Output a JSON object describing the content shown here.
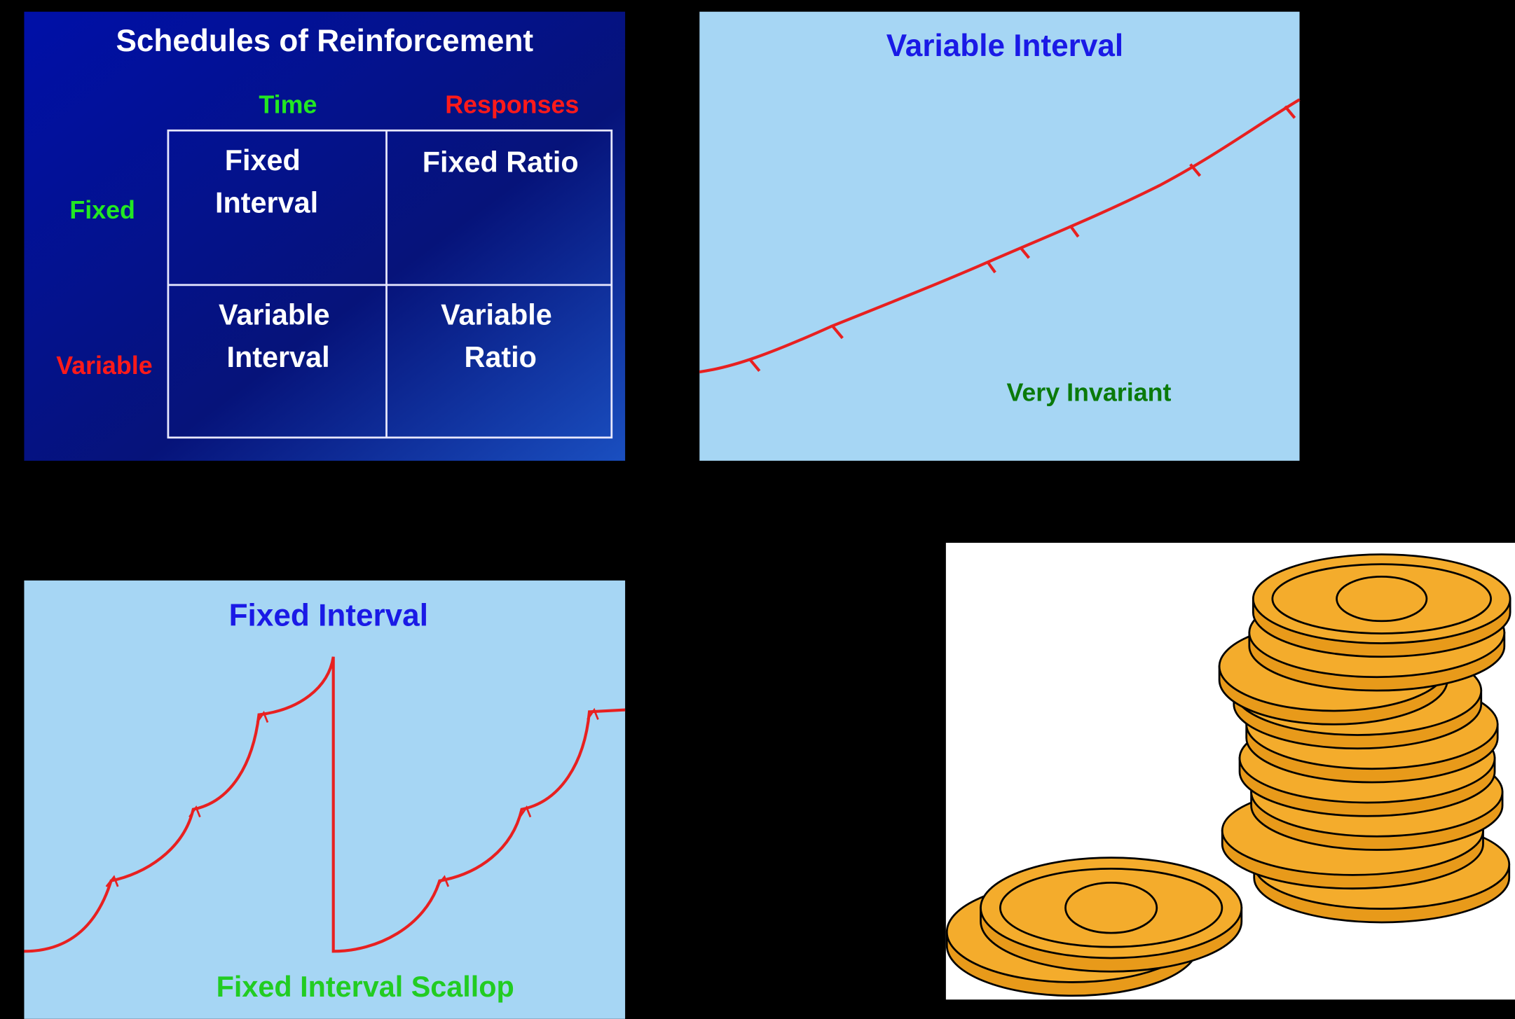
{
  "slide1": {
    "title": "Schedules of Reinforcement",
    "columns": [
      "Time",
      "Responses"
    ],
    "rows": [
      "Fixed",
      "Variable"
    ],
    "cells": [
      [
        [
          "Fixed",
          "Interval"
        ],
        [
          "Fixed Ratio"
        ]
      ],
      [
        [
          "Variable",
          "Interval"
        ],
        [
          "Variable",
          "Ratio"
        ]
      ]
    ]
  },
  "slide2": {
    "title": "Variable Interval",
    "caption": "Very Invariant"
  },
  "slide3": {
    "title": "Fixed Interval",
    "caption": "Fixed Interval Scallop"
  }
}
